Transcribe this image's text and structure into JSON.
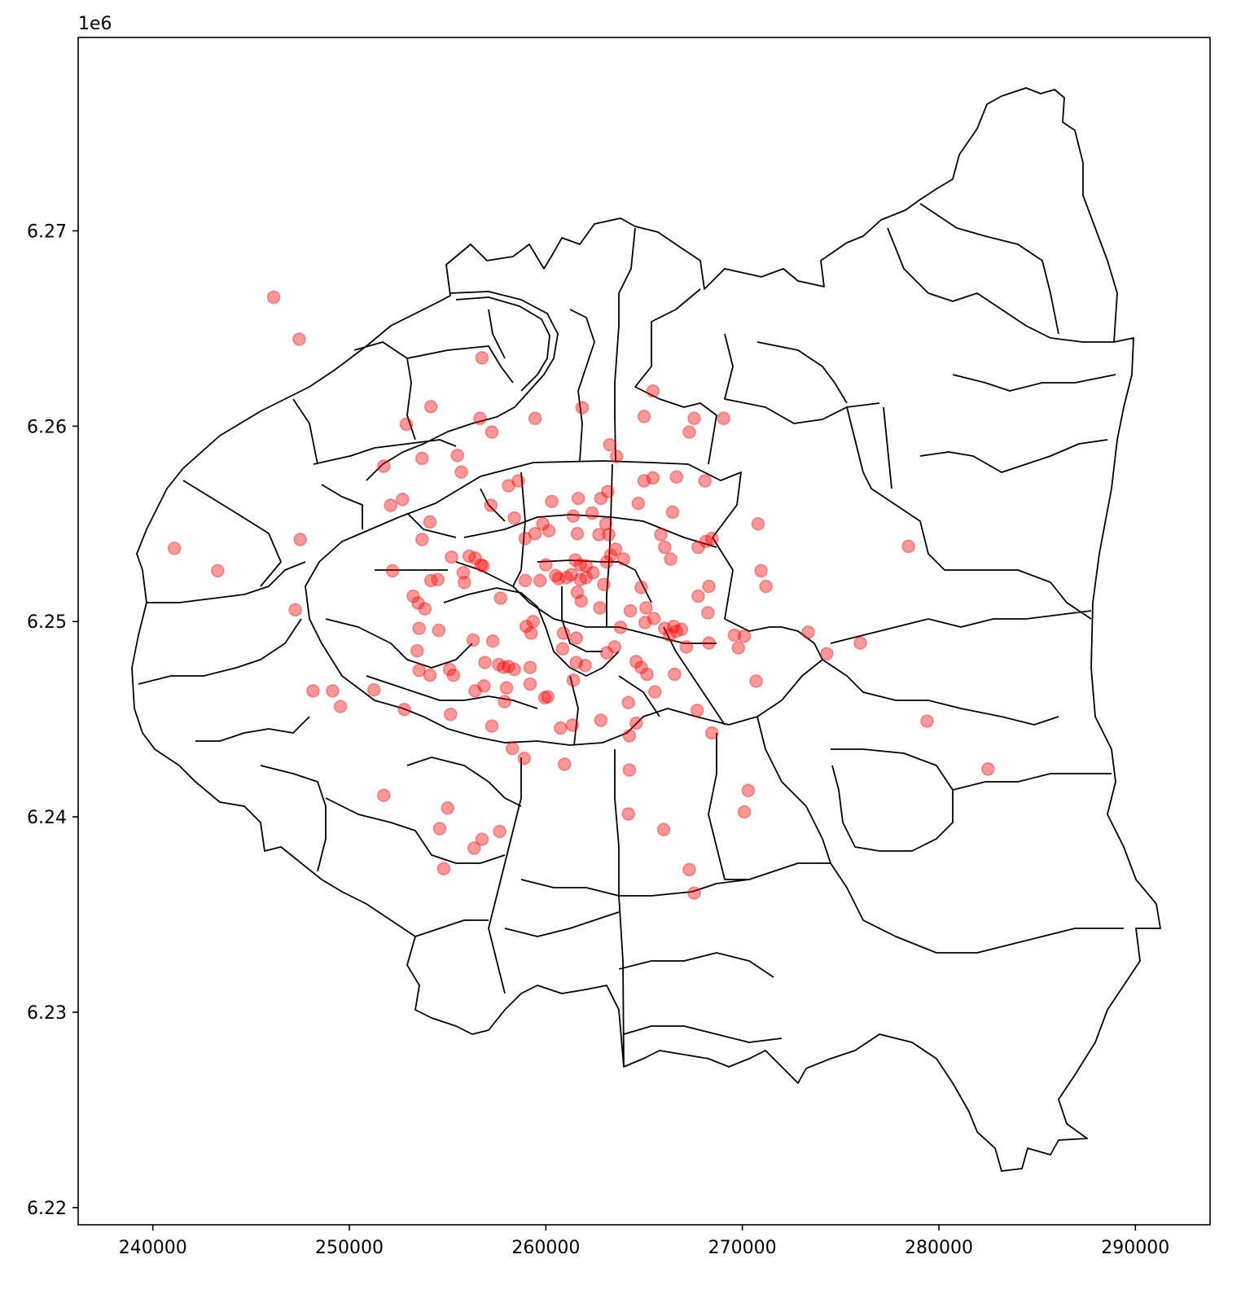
{
  "chart_data": {
    "type": "scatter",
    "title": "",
    "xlabel": "",
    "ylabel": "",
    "y_offset_label": "1e6",
    "xlim": [
      236200,
      293800
    ],
    "ylim": [
      6219120,
      6279900
    ],
    "x_ticks": [
      240000,
      250000,
      260000,
      270000,
      280000,
      290000
    ],
    "x_tick_labels": [
      "240000",
      "250000",
      "260000",
      "270000",
      "280000",
      "290000"
    ],
    "y_ticks": [
      6220000,
      6230000,
      6240000,
      6250000,
      6260000,
      6270000
    ],
    "y_tick_labels": [
      "6.22",
      "6.23",
      "6.24",
      "6.25",
      "6.26",
      "6.27"
    ],
    "grid": false,
    "point_color": "#ff0000",
    "point_alpha": 0.4,
    "boundary_color": "#000000",
    "points": [
      [
        246150,
        6266600
      ],
      [
        247450,
        6264450
      ],
      [
        256750,
        6263500
      ],
      [
        254150,
        6261000
      ],
      [
        252900,
        6260100
      ],
      [
        256650,
        6260400
      ],
      [
        257250,
        6259700
      ],
      [
        259450,
        6260400
      ],
      [
        261850,
        6260950
      ],
      [
        263250,
        6259050
      ],
      [
        263600,
        6258450
      ],
      [
        265000,
        6260500
      ],
      [
        265450,
        6261800
      ],
      [
        267550,
        6260400
      ],
      [
        267300,
        6259700
      ],
      [
        269050,
        6260400
      ],
      [
        253700,
        6258350
      ],
      [
        251750,
        6257950
      ],
      [
        255500,
        6258500
      ],
      [
        255700,
        6257650
      ],
      [
        252100,
        6255950
      ],
      [
        252700,
        6256250
      ],
      [
        254100,
        6255100
      ],
      [
        253700,
        6254200
      ],
      [
        257200,
        6255950
      ],
      [
        258100,
        6256950
      ],
      [
        258600,
        6257200
      ],
      [
        258400,
        6255300
      ],
      [
        258950,
        6254250
      ],
      [
        259450,
        6254500
      ],
      [
        259850,
        6255000
      ],
      [
        260150,
        6254650
      ],
      [
        260300,
        6256150
      ],
      [
        261400,
        6255400
      ],
      [
        261650,
        6256300
      ],
      [
        262350,
        6255550
      ],
      [
        262800,
        6256300
      ],
      [
        263150,
        6256650
      ],
      [
        261600,
        6254500
      ],
      [
        262700,
        6254450
      ],
      [
        263200,
        6254450
      ],
      [
        263050,
        6255000
      ],
      [
        264700,
        6256050
      ],
      [
        265000,
        6257200
      ],
      [
        265450,
        6257350
      ],
      [
        266450,
        6255600
      ],
      [
        266650,
        6257400
      ],
      [
        268100,
        6257200
      ],
      [
        265850,
        6254450
      ],
      [
        266050,
        6253800
      ],
      [
        266350,
        6253200
      ],
      [
        267750,
        6253800
      ],
      [
        268150,
        6254100
      ],
      [
        268450,
        6254250
      ],
      [
        241100,
        6253750
      ],
      [
        243300,
        6252600
      ],
      [
        247500,
        6254200
      ],
      [
        247250,
        6250600
      ],
      [
        252200,
        6252600
      ],
      [
        254150,
        6252100
      ],
      [
        254500,
        6252150
      ],
      [
        255200,
        6253300
      ],
      [
        256100,
        6253350
      ],
      [
        256400,
        6253250
      ],
      [
        255800,
        6252500
      ],
      [
        255850,
        6252000
      ],
      [
        256700,
        6252900
      ],
      [
        256800,
        6252850
      ],
      [
        257700,
        6251200
      ],
      [
        258950,
        6252100
      ],
      [
        259700,
        6252100
      ],
      [
        260000,
        6252900
      ],
      [
        260500,
        6252350
      ],
      [
        260650,
        6252200
      ],
      [
        261050,
        6252250
      ],
      [
        261300,
        6252400
      ],
      [
        261750,
        6252150
      ],
      [
        262050,
        6252250
      ],
      [
        261500,
        6253150
      ],
      [
        261750,
        6252900
      ],
      [
        262050,
        6252850
      ],
      [
        262400,
        6252500
      ],
      [
        261600,
        6251500
      ],
      [
        261800,
        6251050
      ],
      [
        262950,
        6251900
      ],
      [
        263100,
        6253050
      ],
      [
        263300,
        6253400
      ],
      [
        263550,
        6253700
      ],
      [
        263950,
        6253200
      ],
      [
        264300,
        6250550
      ],
      [
        264850,
        6251750
      ],
      [
        265100,
        6250700
      ],
      [
        265500,
        6250150
      ],
      [
        265050,
        6249950
      ],
      [
        266050,
        6249650
      ],
      [
        266300,
        6249300
      ],
      [
        266650,
        6249500
      ],
      [
        266500,
        6249750
      ],
      [
        266900,
        6249600
      ],
      [
        267150,
        6248700
      ],
      [
        267750,
        6251300
      ],
      [
        268250,
        6250450
      ],
      [
        268300,
        6251800
      ],
      [
        268300,
        6248900
      ],
      [
        269600,
        6249300
      ],
      [
        269800,
        6248650
      ],
      [
        270100,
        6249250
      ],
      [
        270800,
        6255000
      ],
      [
        270950,
        6252600
      ],
      [
        271200,
        6251800
      ],
      [
        273350,
        6249450
      ],
      [
        274300,
        6248350
      ],
      [
        276000,
        6248900
      ],
      [
        278450,
        6253850
      ],
      [
        253250,
        6251300
      ],
      [
        253500,
        6250950
      ],
      [
        253850,
        6250650
      ],
      [
        253550,
        6249650
      ],
      [
        254550,
        6249550
      ],
      [
        253450,
        6248500
      ],
      [
        253550,
        6247500
      ],
      [
        254100,
        6247250
      ],
      [
        255100,
        6247550
      ],
      [
        255300,
        6247250
      ],
      [
        256300,
        6249050
      ],
      [
        256900,
        6247900
      ],
      [
        257300,
        6249000
      ],
      [
        257600,
        6247800
      ],
      [
        257850,
        6247650
      ],
      [
        258100,
        6247700
      ],
      [
        258400,
        6247550
      ],
      [
        259200,
        6247650
      ],
      [
        259000,
        6249750
      ],
      [
        259350,
        6250000
      ],
      [
        259250,
        6249400
      ],
      [
        259950,
        6246100
      ],
      [
        260100,
        6246150
      ],
      [
        258000,
        6246600
      ],
      [
        256400,
        6246450
      ],
      [
        256850,
        6246700
      ],
      [
        257900,
        6245900
      ],
      [
        259200,
        6246800
      ],
      [
        260900,
        6249400
      ],
      [
        260850,
        6248600
      ],
      [
        261550,
        6249150
      ],
      [
        261400,
        6247000
      ],
      [
        261550,
        6247900
      ],
      [
        262000,
        6247750
      ],
      [
        262750,
        6250700
      ],
      [
        263100,
        6248400
      ],
      [
        263500,
        6248700
      ],
      [
        263800,
        6249700
      ],
      [
        264600,
        6247950
      ],
      [
        264850,
        6247650
      ],
      [
        265150,
        6247300
      ],
      [
        265550,
        6246400
      ],
      [
        266550,
        6247300
      ],
      [
        267700,
        6245450
      ],
      [
        268450,
        6244300
      ],
      [
        270700,
        6246950
      ],
      [
        248150,
        6246450
      ],
      [
        249150,
        6246450
      ],
      [
        249550,
        6245650
      ],
      [
        251250,
        6246500
      ],
      [
        252800,
        6245500
      ],
      [
        255150,
        6245250
      ],
      [
        257250,
        6244650
      ],
      [
        258300,
        6243500
      ],
      [
        258900,
        6243000
      ],
      [
        260750,
        6244550
      ],
      [
        261350,
        6244700
      ],
      [
        262800,
        6244950
      ],
      [
        264200,
        6245850
      ],
      [
        264600,
        6244800
      ],
      [
        264250,
        6244150
      ],
      [
        260950,
        6242700
      ],
      [
        264250,
        6242400
      ],
      [
        282500,
        6242450
      ],
      [
        279400,
        6244900
      ],
      [
        251750,
        6241100
      ],
      [
        255000,
        6240450
      ],
      [
        254600,
        6239400
      ],
      [
        256750,
        6238850
      ],
      [
        257650,
        6239250
      ],
      [
        256350,
        6238400
      ],
      [
        254800,
        6237350
      ],
      [
        264200,
        6240150
      ],
      [
        266000,
        6239350
      ],
      [
        270300,
        6241350
      ],
      [
        270100,
        6240250
      ],
      [
        267300,
        6237300
      ],
      [
        267550,
        6236100
      ]
    ]
  }
}
